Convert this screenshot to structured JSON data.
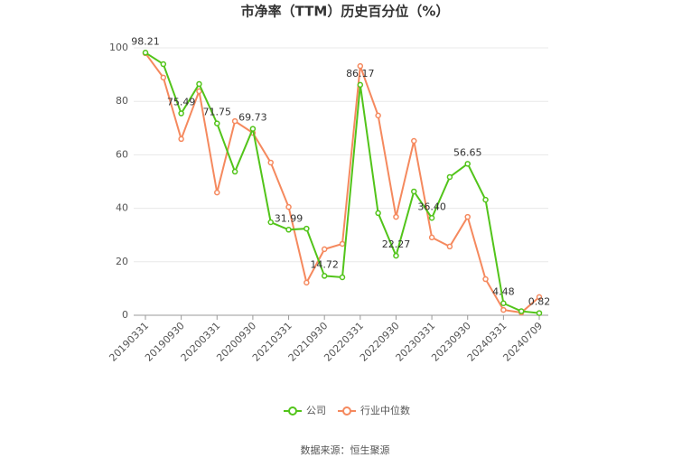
{
  "chart_data": {
    "type": "line",
    "title": "市净率（TTM）历史百分位（%）",
    "categories": [
      "20190331",
      null,
      "20190930",
      null,
      "20200331",
      null,
      "20200930",
      null,
      "20210331",
      null,
      "20210930",
      null,
      "20220331",
      null,
      "20220930",
      null,
      "20230331",
      null,
      "20230930",
      null,
      "20240331",
      null,
      "20240709"
    ],
    "series": [
      {
        "name": "公司",
        "color": "#52c41a",
        "values": [
          98.21,
          93.9,
          75.49,
          86.5,
          71.75,
          53.7,
          69.73,
          34.8,
          31.99,
          32.4,
          14.72,
          14.2,
          86.17,
          38.2,
          22.27,
          46.3,
          36.4,
          51.7,
          56.65,
          43.2,
          4.48,
          1.5,
          0.82
        ],
        "value_labels": [
          "98.21",
          null,
          "75.49",
          null,
          "71.75",
          null,
          "69.73",
          null,
          "31.99",
          null,
          "14.72",
          null,
          "86.17",
          null,
          "22.27",
          null,
          "36.40",
          null,
          "56.65",
          null,
          "4.48",
          null,
          "0.82"
        ]
      },
      {
        "name": "行业中位数",
        "color": "#f5895e",
        "values": [
          98,
          88.9,
          65.9,
          83.8,
          45.9,
          72.6,
          68.2,
          57.1,
          40.5,
          12.2,
          24.7,
          26.7,
          93.2,
          74.7,
          36.8,
          65.2,
          29.1,
          25.7,
          36.8,
          13.5,
          2.0,
          1.0,
          6.8
        ]
      }
    ],
    "ylim": [
      0,
      100
    ],
    "yticks": [
      0,
      20,
      40,
      60,
      80,
      100
    ],
    "grid": true,
    "source": "数据来源：恒生聚源"
  }
}
